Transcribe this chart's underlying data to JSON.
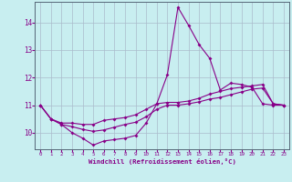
{
  "xlabel": "Windchill (Refroidissement éolien,°C)",
  "bg_color": "#c8eef0",
  "line_color": "#880088",
  "grid_color": "#aabbcc",
  "xlim": [
    -0.5,
    23.5
  ],
  "ylim": [
    9.4,
    14.75
  ],
  "yticks": [
    10,
    11,
    12,
    13,
    14
  ],
  "xticks": [
    0,
    1,
    2,
    3,
    4,
    5,
    6,
    7,
    8,
    9,
    10,
    11,
    12,
    13,
    14,
    15,
    16,
    17,
    18,
    19,
    20,
    21,
    22,
    23
  ],
  "series1": [
    11.0,
    10.5,
    10.3,
    10.0,
    9.8,
    9.55,
    9.7,
    9.75,
    9.8,
    9.9,
    10.35,
    11.05,
    12.1,
    14.55,
    13.9,
    13.2,
    12.7,
    11.55,
    11.8,
    11.75,
    11.65,
    11.05,
    11.0,
    11.0
  ],
  "series2": [
    11.0,
    10.5,
    10.35,
    10.35,
    10.3,
    10.3,
    10.45,
    10.5,
    10.55,
    10.65,
    10.85,
    11.05,
    11.1,
    11.1,
    11.15,
    11.25,
    11.4,
    11.5,
    11.6,
    11.65,
    11.7,
    11.75,
    11.05,
    11.0
  ],
  "series3": [
    11.0,
    10.5,
    10.3,
    10.22,
    10.12,
    10.05,
    10.1,
    10.2,
    10.3,
    10.38,
    10.58,
    10.85,
    11.0,
    11.0,
    11.05,
    11.12,
    11.22,
    11.28,
    11.38,
    11.48,
    11.58,
    11.62,
    11.05,
    11.0
  ]
}
